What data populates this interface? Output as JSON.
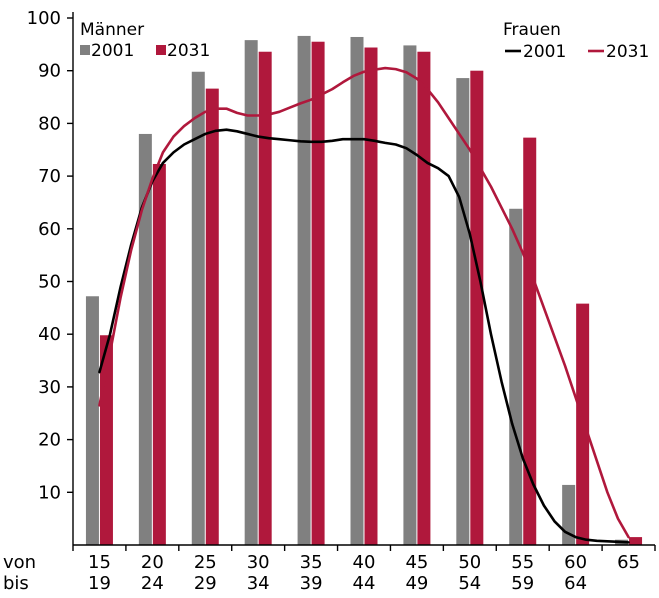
{
  "chart_data": {
    "type": "bar",
    "row_labels": {
      "from": "von",
      "to": "bis"
    },
    "categories_from": [
      "15",
      "20",
      "25",
      "30",
      "35",
      "40",
      "45",
      "50",
      "55",
      "60",
      "65"
    ],
    "categories_to": [
      "19",
      "24",
      "29",
      "34",
      "39",
      "44",
      "49",
      "54",
      "59",
      "64",
      ""
    ],
    "ylim": [
      0,
      100
    ],
    "yticks": [
      10,
      20,
      30,
      40,
      50,
      60,
      70,
      80,
      90,
      100
    ],
    "grid": false,
    "legend": {
      "bars_title": "Männer",
      "lines_title": "Frauen",
      "bars_position": "top-left",
      "lines_position": "top-right"
    },
    "bar_series": [
      {
        "name": "2001",
        "color": "#808080",
        "values": [
          47.2,
          78,
          89.8,
          95.8,
          96.6,
          96.4,
          94.8,
          88.6,
          63.8,
          11.4,
          1.0
        ]
      },
      {
        "name": "2031",
        "color": "#b0183c",
        "values": [
          39.8,
          72.3,
          86.6,
          93.6,
          95.5,
          94.4,
          93.6,
          90.0,
          77.3,
          45.8,
          1.5
        ]
      }
    ],
    "line_series": [
      {
        "name": "2001",
        "color": "#000000",
        "x": [
          15,
          16,
          17,
          18,
          19,
          20,
          21,
          22,
          23,
          24,
          25,
          26,
          27,
          28,
          29,
          30,
          31,
          32,
          33,
          34,
          35,
          36,
          37,
          38,
          39,
          40,
          41,
          42,
          43,
          44,
          45,
          46,
          47,
          48,
          49,
          50,
          51,
          52,
          53,
          54,
          55,
          56,
          57,
          58,
          59,
          60,
          61,
          62,
          63,
          64,
          65
        ],
        "y": [
          32.8,
          40,
          49,
          57,
          64,
          69,
          72.5,
          74.5,
          76,
          77,
          78,
          78.6,
          78.8,
          78.5,
          78,
          77.5,
          77.2,
          77,
          76.8,
          76.6,
          76.5,
          76.5,
          76.7,
          77,
          77,
          77,
          76.7,
          76.3,
          76,
          75.3,
          74,
          72.5,
          71.5,
          70,
          66,
          59,
          50,
          40,
          31,
          23,
          16.5,
          11.5,
          7.5,
          4.5,
          2.5,
          1.5,
          1.0,
          0.8,
          0.7,
          0.6,
          0.5
        ]
      },
      {
        "name": "2031",
        "color": "#b0183c",
        "x": [
          15,
          16,
          17,
          18,
          19,
          20,
          21,
          22,
          23,
          24,
          25,
          26,
          27,
          28,
          29,
          30,
          31,
          32,
          33,
          34,
          35,
          36,
          37,
          38,
          39,
          40,
          41,
          42,
          43,
          44,
          45,
          46,
          47,
          48,
          49,
          50,
          51,
          52,
          53,
          54,
          55,
          56,
          57,
          58,
          59,
          60,
          61,
          62,
          63,
          64,
          65
        ],
        "y": [
          26.5,
          36.5,
          47,
          56,
          63.5,
          69.5,
          74.5,
          77.5,
          79.5,
          81,
          82.2,
          82.8,
          82.8,
          82,
          81.5,
          81.5,
          81.7,
          82.2,
          83,
          83.8,
          84.5,
          85.5,
          86.5,
          87.8,
          89,
          89.8,
          90.2,
          90.5,
          90.3,
          89.7,
          88.5,
          86.5,
          84,
          81,
          78,
          75,
          71.5,
          68,
          64,
          60,
          55.5,
          50.5,
          45,
          39.5,
          34,
          28,
          22,
          16,
          10,
          5,
          1.5
        ]
      }
    ]
  }
}
